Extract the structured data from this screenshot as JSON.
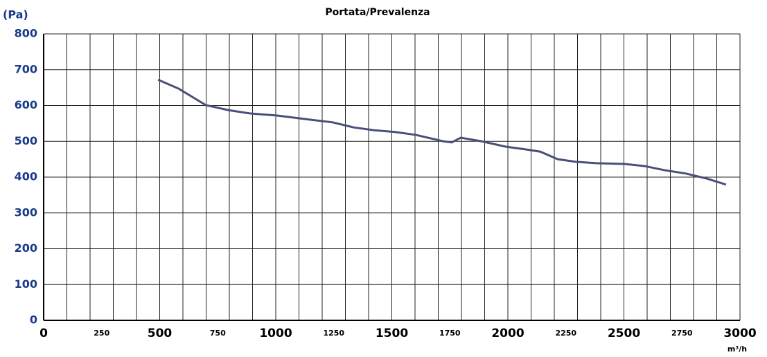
{
  "chart_data": {
    "type": "line",
    "title": "Portata/Prevalenza",
    "y_label": "(Pa)",
    "x_label": "m³/h",
    "x": [
      493,
      582,
      699,
      797,
      887,
      1006,
      1155,
      1245,
      1334,
      1424,
      1513,
      1603,
      1722,
      1758,
      1797,
      1887,
      1991,
      2081,
      2140,
      2215,
      2290,
      2379,
      2499,
      2588,
      2678,
      2767,
      2857,
      2940
    ],
    "series": [
      {
        "name": "Portata/Prevalenza",
        "color": "#4a4e7a",
        "values": [
          672,
          647,
          601,
          587,
          578,
          572,
          560,
          553,
          539,
          531,
          526,
          518,
          500,
          497,
          510,
          500,
          485,
          477,
          471,
          450,
          443,
          439,
          437,
          431,
          419,
          410,
          396,
          379
        ]
      }
    ],
    "xlim": [
      0,
      3000
    ],
    "ylim": [
      0,
      800
    ],
    "xticks": [
      0,
      250,
      500,
      750,
      1000,
      1250,
      1500,
      1750,
      2000,
      2250,
      2500,
      2750,
      3000
    ],
    "xgrid": [
      0,
      100,
      200,
      300,
      400,
      500,
      600,
      700,
      800,
      900,
      1000,
      1100,
      1200,
      1300,
      1400,
      1500,
      1600,
      1700,
      1800,
      1900,
      2000,
      2100,
      2200,
      2300,
      2400,
      2500,
      2600,
      2700,
      2800,
      2900,
      3000
    ],
    "yticks": [
      0,
      100,
      200,
      300,
      400,
      500,
      600,
      700,
      800
    ],
    "grid": true
  }
}
